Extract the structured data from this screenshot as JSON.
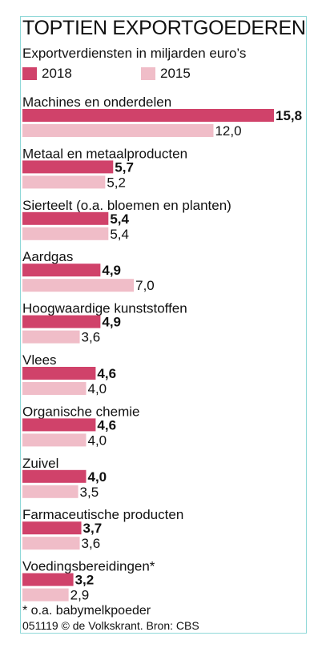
{
  "title": "TOPTIEN EXPORTGOEDEREN",
  "subtitle": "Exportverdiensten in miljarden euro’s",
  "legend": {
    "a": "2018",
    "b": "2015"
  },
  "colors": {
    "2018": "#d0426a",
    "2015": "#f0bdc8"
  },
  "footnote": "* o.a. babymelkpoeder",
  "source": "051119 © de Volkskrant. Bron: CBS",
  "chart_data": {
    "type": "bar",
    "orientation": "horizontal",
    "categories": [
      "Machines en onderdelen",
      "Metaal en metaalproducten",
      "Sierteelt (o.a. bloemen en planten)",
      "Aardgas",
      "Hoogwaardige kunststoffen",
      "Vlees",
      "Organische chemie",
      "Zuivel",
      "Farmaceutische producten",
      "Voedingsbereidingen*"
    ],
    "series": [
      {
        "name": "2018",
        "values": [
          15.8,
          5.7,
          5.4,
          4.9,
          4.9,
          4.6,
          4.6,
          4.0,
          3.7,
          3.2
        ],
        "labels": [
          "15,8",
          "5,7",
          "5,4",
          "4,9",
          "4,9",
          "4,6",
          "4,6",
          "4,0",
          "3,7",
          "3,2"
        ]
      },
      {
        "name": "2015",
        "values": [
          12.0,
          5.2,
          5.4,
          7.0,
          3.6,
          4.0,
          4.0,
          3.5,
          3.6,
          2.9
        ],
        "labels": [
          "12,0",
          "5,2",
          "5,4",
          "7,0",
          "3,6",
          "4,0",
          "4,0",
          "3,5",
          "3,6",
          "2,9"
        ]
      }
    ],
    "xlim": [
      0,
      15.8
    ],
    "legend_position": "top-left",
    "grid": false
  }
}
